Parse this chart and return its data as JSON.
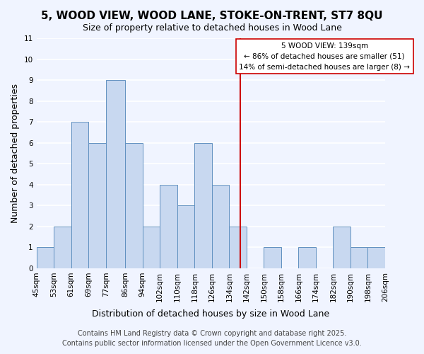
{
  "title": "5, WOOD VIEW, WOOD LANE, STOKE-ON-TRENT, ST7 8QU",
  "subtitle": "Size of property relative to detached houses in Wood Lane",
  "xlabel": "Distribution of detached houses by size in Wood Lane",
  "ylabel": "Number of detached properties",
  "bins": [
    45,
    53,
    61,
    69,
    77,
    86,
    94,
    102,
    110,
    118,
    126,
    134,
    142,
    150,
    158,
    166,
    174,
    182,
    190,
    198,
    206
  ],
  "bin_labels": [
    "45sqm",
    "53sqm",
    "61sqm",
    "69sqm",
    "77sqm",
    "86sqm",
    "94sqm",
    "102sqm",
    "110sqm",
    "118sqm",
    "126sqm",
    "134sqm",
    "142sqm",
    "150sqm",
    "158sqm",
    "166sqm",
    "174sqm",
    "182sqm",
    "190sqm",
    "198sqm",
    "206sqm"
  ],
  "counts": [
    1,
    2,
    7,
    6,
    9,
    6,
    2,
    4,
    3,
    6,
    4,
    2,
    0,
    1,
    0,
    1,
    0,
    2,
    1,
    1
  ],
  "bar_color": "#c8d8f0",
  "bar_edge_color": "#6090c0",
  "bg_color": "#f0f4ff",
  "grid_color": "#ffffff",
  "vline_x": 139,
  "vline_color": "#cc0000",
  "annotation_title": "5 WOOD VIEW: 139sqm",
  "annotation_line1": "← 86% of detached houses are smaller (51)",
  "annotation_line2": "14% of semi-detached houses are larger (8) →",
  "annotation_box_color": "#ffffff",
  "annotation_border_color": "#cc0000",
  "ylim": [
    0,
    11
  ],
  "yticks": [
    0,
    1,
    2,
    3,
    4,
    5,
    6,
    7,
    8,
    9,
    10,
    11
  ],
  "footer_line1": "Contains HM Land Registry data © Crown copyright and database right 2025.",
  "footer_line2": "Contains public sector information licensed under the Open Government Licence v3.0.",
  "title_fontsize": 11,
  "subtitle_fontsize": 9,
  "axis_label_fontsize": 9,
  "tick_fontsize": 7.5,
  "footer_fontsize": 7
}
